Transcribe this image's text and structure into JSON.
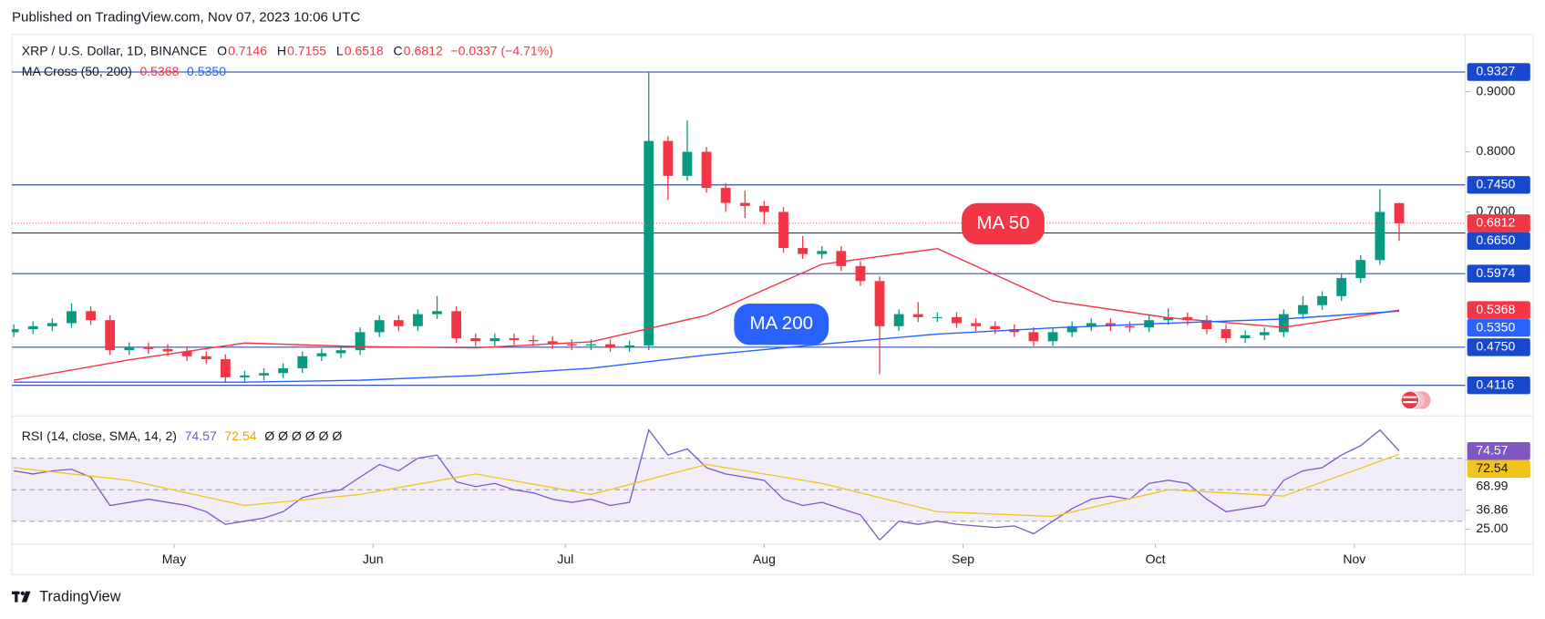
{
  "header": {
    "published": "Published on TradingView.com, Nov 07, 2023 10:06 UTC"
  },
  "chart_data": [
    {
      "type": "candlestick",
      "title": "XRP / U.S. Dollar, 1D, BINANCE",
      "ohlc_labels": [
        "O",
        "H",
        "L",
        "C"
      ],
      "change": "−0.0337 (−4.71%)",
      "open": [
        0.5,
        0.505,
        0.51,
        0.515,
        0.535,
        0.52,
        0.47,
        0.475,
        0.472,
        0.468,
        0.46,
        0.455,
        0.425,
        0.428,
        0.432,
        0.44,
        0.46,
        0.465,
        0.47,
        0.5,
        0.52,
        0.51,
        0.53,
        0.535,
        0.49,
        0.485,
        0.49,
        0.487,
        0.485,
        0.48,
        0.478,
        0.48,
        0.475,
        0.478,
        0.818,
        0.76,
        0.8,
        0.74,
        0.715,
        0.71,
        0.7,
        0.64,
        0.63,
        0.635,
        0.61,
        0.585,
        0.51,
        0.53,
        0.525,
        0.525,
        0.515,
        0.51,
        0.505,
        0.5,
        0.485,
        0.5,
        0.51,
        0.515,
        0.51,
        0.508,
        0.52,
        0.525,
        0.52,
        0.505,
        0.49,
        0.495,
        0.5,
        0.53,
        0.545,
        0.56,
        0.59,
        0.62,
        0.7146
      ],
      "high": [
        0.513,
        0.518,
        0.523,
        0.548,
        0.543,
        0.528,
        0.483,
        0.483,
        0.48,
        0.476,
        0.468,
        0.463,
        0.436,
        0.44,
        0.448,
        0.468,
        0.473,
        0.478,
        0.508,
        0.528,
        0.528,
        0.538,
        0.56,
        0.543,
        0.498,
        0.498,
        0.498,
        0.495,
        0.493,
        0.488,
        0.488,
        0.488,
        0.486,
        0.9327,
        0.826,
        0.852,
        0.808,
        0.748,
        0.735,
        0.718,
        0.708,
        0.66,
        0.643,
        0.643,
        0.618,
        0.593,
        0.538,
        0.55,
        0.533,
        0.533,
        0.523,
        0.518,
        0.513,
        0.508,
        0.508,
        0.518,
        0.523,
        0.523,
        0.518,
        0.528,
        0.54,
        0.533,
        0.528,
        0.513,
        0.503,
        0.508,
        0.538,
        0.56,
        0.568,
        0.598,
        0.628,
        0.738,
        0.7155
      ],
      "low": [
        0.492,
        0.497,
        0.502,
        0.507,
        0.512,
        0.462,
        0.462,
        0.464,
        0.46,
        0.452,
        0.447,
        0.417,
        0.417,
        0.42,
        0.424,
        0.432,
        0.452,
        0.457,
        0.462,
        0.492,
        0.502,
        0.502,
        0.522,
        0.482,
        0.477,
        0.477,
        0.479,
        0.477,
        0.472,
        0.47,
        0.47,
        0.467,
        0.467,
        0.47,
        0.72,
        0.752,
        0.732,
        0.7,
        0.69,
        0.68,
        0.632,
        0.622,
        0.622,
        0.602,
        0.577,
        0.43,
        0.502,
        0.517,
        0.517,
        0.507,
        0.502,
        0.497,
        0.492,
        0.477,
        0.477,
        0.492,
        0.502,
        0.502,
        0.5,
        0.5,
        0.512,
        0.512,
        0.497,
        0.482,
        0.482,
        0.487,
        0.492,
        0.522,
        0.537,
        0.552,
        0.582,
        0.612,
        0.6518
      ],
      "close": [
        0.505,
        0.51,
        0.515,
        0.535,
        0.52,
        0.47,
        0.475,
        0.472,
        0.468,
        0.46,
        0.455,
        0.425,
        0.428,
        0.432,
        0.44,
        0.46,
        0.465,
        0.47,
        0.5,
        0.52,
        0.51,
        0.53,
        0.535,
        0.49,
        0.485,
        0.49,
        0.487,
        0.485,
        0.48,
        0.478,
        0.48,
        0.475,
        0.478,
        0.818,
        0.76,
        0.8,
        0.74,
        0.715,
        0.71,
        0.7,
        0.64,
        0.63,
        0.635,
        0.61,
        0.585,
        0.51,
        0.53,
        0.525,
        0.525,
        0.515,
        0.51,
        0.505,
        0.5,
        0.485,
        0.5,
        0.51,
        0.515,
        0.51,
        0.508,
        0.52,
        0.525,
        0.52,
        0.505,
        0.49,
        0.495,
        0.5,
        0.53,
        0.545,
        0.56,
        0.59,
        0.62,
        0.7,
        0.6812
      ],
      "up_color": "#089981",
      "down_color": "#f23645",
      "ylim": [
        0.364,
        0.995
      ],
      "yticks": [
        {
          "value": 0.9,
          "label": "0.9000"
        },
        {
          "value": 0.8,
          "label": "0.8000"
        },
        {
          "value": 0.7,
          "label": "0.7000"
        }
      ],
      "xticks": [
        {
          "value": 8.33,
          "label": "May"
        },
        {
          "value": 18.67,
          "label": "Jun"
        },
        {
          "value": 28.67,
          "label": "Jul"
        },
        {
          "value": 39,
          "label": "Aug"
        },
        {
          "value": 49.33,
          "label": "Sep"
        },
        {
          "value": 59.33,
          "label": "Oct"
        },
        {
          "value": 69.67,
          "label": "Nov"
        }
      ],
      "levels": [
        0.9327,
        {
          "value": 0.745,
          "label": "0.7450"
        },
        {
          "value": 0.665,
          "label": "0.6650"
        },
        0.5974,
        {
          "value": 0.475,
          "label": "0.4750"
        },
        0.4116
      ],
      "level_color": "#1f3b9a",
      "overlay": {
        "title": "MA Cross (50, 200)",
        "x": [
          0,
          6,
          12,
          18,
          24,
          30,
          36,
          42,
          48,
          54,
          60,
          66,
          72
        ],
        "series": [
          {
            "name": "MA 50",
            "color": "#f23645",
            "values": [
              0.42,
              0.454,
              0.482,
              0.476,
              0.474,
              0.484,
              0.528,
              0.613,
              0.639,
              0.552,
              0.524,
              0.508,
              0.5368
            ]
          },
          {
            "name": "MA 200",
            "color": "#2962ff",
            "values": [
              0.417,
              0.417,
              0.417,
              0.42,
              0.428,
              0.44,
              0.462,
              0.48,
              0.497,
              0.507,
              0.515,
              0.522,
              0.535
            ],
            "value_labels": [
              null,
              null,
              null,
              null,
              null,
              null,
              null,
              null,
              null,
              null,
              null,
              null,
              "0.5350"
            ]
          }
        ]
      }
    },
    {
      "type": "line",
      "title": "RSI (14, close, SMA, 14, 2)",
      "extra": "Ø Ø Ø Ø Ø Ø",
      "ylim": [
        18,
        95
      ],
      "bands": [
        70,
        50,
        30
      ],
      "band_color": "#7e57c2",
      "yticks": [
        68.99,
        36.86,
        {
          "value": 25,
          "label": "25.00"
        }
      ],
      "series": [
        {
          "color": "#7e57c2",
          "values": [
            62,
            60,
            62,
            63,
            58,
            40,
            42,
            44,
            42,
            40,
            36,
            28,
            30,
            32,
            36,
            45,
            48,
            50,
            58,
            66,
            62,
            70,
            72,
            55,
            52,
            54,
            50,
            48,
            44,
            42,
            44,
            40,
            42,
            88,
            72,
            76,
            64,
            60,
            58,
            56,
            44,
            40,
            42,
            38,
            34,
            18,
            30,
            28,
            30,
            28,
            27,
            26,
            27,
            22,
            30,
            38,
            44,
            46,
            44,
            54,
            56,
            54,
            44,
            36,
            38,
            40,
            56,
            62,
            64,
            72,
            78,
            88,
            74.57
          ]
        },
        {
          "color": "#f2c31b",
          "x": [
            0,
            6,
            12,
            18,
            24,
            30,
            36,
            42,
            48,
            54,
            60,
            66,
            72
          ],
          "values": [
            64,
            56,
            40,
            47,
            60,
            47,
            66,
            54,
            36,
            33,
            50,
            46,
            72.54
          ]
        }
      ]
    }
  ],
  "footer": {
    "brand": "TradingView"
  }
}
